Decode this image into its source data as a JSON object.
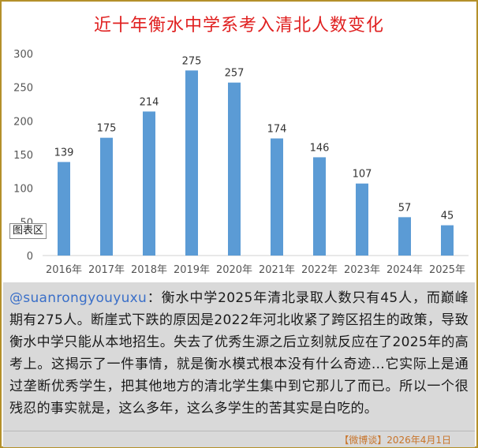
{
  "chart_data": {
    "type": "bar",
    "title": "近十年衡水中学系考入清北人数变化",
    "categories": [
      "2016年",
      "2017年",
      "2018年",
      "2019年",
      "2020年",
      "2021年",
      "2022年",
      "2023年",
      "2024年",
      "2025年"
    ],
    "values": [
      139,
      175,
      214,
      275,
      257,
      174,
      146,
      107,
      57,
      45
    ],
    "ylim": [
      0,
      300
    ],
    "yticks": [
      0,
      50,
      100,
      150,
      200,
      250,
      300
    ],
    "bar_color": "#5b9bd5",
    "grid": false,
    "data_labels": true
  },
  "chart_tag": "图表区",
  "caption": {
    "handle": "@suanrongyouyuxu",
    "body": "：衡水中学2025年清北录取人数只有45人，而巅峰期有275人。断崖式下跌的原因是2022年河北收紧了跨区招生的政策，导致衡水中学只能从本地招生。失去了优秀生源之后立刻就反应在了2025年的高考上。这揭示了一件事情，就是衡水模式根本没有什么奇迹…它实际上是通过垄断优秀学生，把其他地方的清北学生集中到它那儿了而已。所以一个很残忍的事实就是，这么多年，这么多学生的苦其实是白吃的。"
  },
  "footer": "【微博谈】2026年4月1日",
  "colors": {
    "title": "#e02020",
    "frame": "#b4902a",
    "caption_bg": "#d9d9d9",
    "handle": "#3a6fc8",
    "footer": "#c8742a"
  }
}
